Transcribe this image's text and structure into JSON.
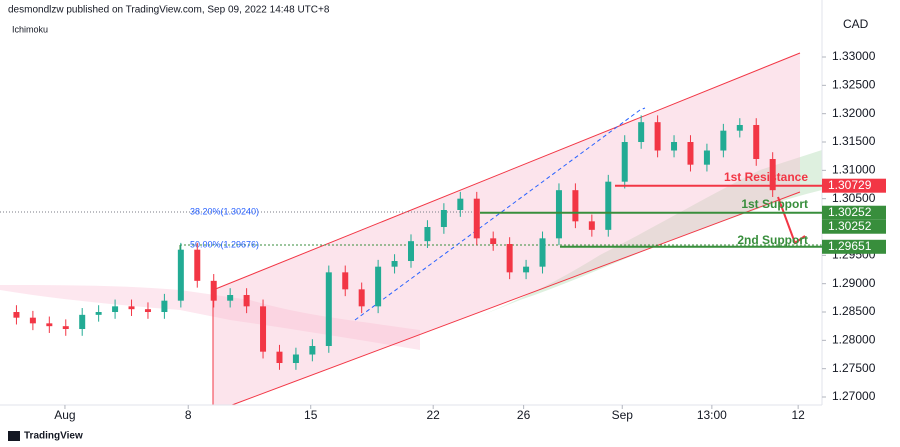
{
  "chart_data": {
    "type": "candlestick",
    "header": "desmondlzw published on TradingView.com, Sep 09, 2022 14:48 UTC+8",
    "indicator": "Ichimoku",
    "currency": "CAD",
    "footer": "TradingView",
    "x": [
      2,
      4,
      6,
      8,
      10,
      12,
      14,
      16,
      18,
      20,
      22,
      24,
      26,
      28,
      30,
      32,
      34,
      36,
      38,
      40,
      42,
      44,
      46,
      48,
      50,
      52,
      54,
      56,
      58,
      60,
      62,
      64,
      66,
      68,
      70,
      72,
      74,
      76,
      78,
      80,
      82,
      84,
      86,
      88,
      90,
      92,
      94
    ],
    "open": [
      1.285,
      1.284,
      1.283,
      1.2825,
      1.282,
      1.2845,
      1.285,
      1.286,
      1.2855,
      1.285,
      1.287,
      1.296,
      1.2905,
      1.287,
      1.288,
      1.286,
      1.278,
      1.276,
      1.2775,
      1.279,
      1.292,
      1.289,
      1.286,
      1.293,
      1.294,
      1.2975,
      1.3,
      1.303,
      1.305,
      1.298,
      1.297,
      1.292,
      1.293,
      1.298,
      1.3065,
      1.301,
      1.2995,
      1.308,
      1.315,
      1.3185,
      1.3135,
      1.315,
      1.311,
      1.3135,
      1.317,
      1.318,
      1.312
    ],
    "high": [
      1.2862,
      1.2852,
      1.2842,
      1.2837,
      1.2857,
      1.2862,
      1.2872,
      1.2872,
      1.2867,
      1.2882,
      1.2972,
      1.2972,
      1.2917,
      1.2892,
      1.2892,
      1.2872,
      1.2792,
      1.2787,
      1.2802,
      1.2932,
      1.2932,
      1.2902,
      1.2942,
      1.2952,
      1.2987,
      1.3012,
      1.3042,
      1.3062,
      1.3062,
      1.2992,
      1.2982,
      1.2942,
      1.2992,
      1.3077,
      1.3077,
      1.3022,
      1.3092,
      1.3162,
      1.3197,
      1.3197,
      1.3162,
      1.3162,
      1.3147,
      1.3182,
      1.3192,
      1.3192,
      1.3132
    ],
    "low": [
      1.2828,
      1.2818,
      1.2813,
      1.2808,
      1.2808,
      1.2833,
      1.2838,
      1.2843,
      1.2838,
      1.2838,
      1.2858,
      1.2893,
      1.2858,
      1.2858,
      1.2848,
      1.2768,
      1.2748,
      1.2748,
      1.2763,
      1.2778,
      1.2878,
      1.2848,
      1.2848,
      1.2918,
      1.2928,
      1.2963,
      1.2988,
      1.3018,
      1.2968,
      1.2958,
      1.2908,
      1.2908,
      1.2918,
      1.2968,
      1.2998,
      1.2983,
      1.2983,
      1.3068,
      1.3138,
      1.3123,
      1.3123,
      1.3098,
      1.3098,
      1.3123,
      1.3158,
      1.3108,
      1.3053
    ],
    "close": [
      1.284,
      1.283,
      1.2825,
      1.282,
      1.2845,
      1.285,
      1.286,
      1.2855,
      1.285,
      1.287,
      1.296,
      1.2905,
      1.287,
      1.288,
      1.286,
      1.278,
      1.276,
      1.2775,
      1.279,
      1.292,
      1.289,
      1.286,
      1.293,
      1.294,
      1.2975,
      1.3,
      1.303,
      1.305,
      1.298,
      1.297,
      1.292,
      1.293,
      1.298,
      1.3065,
      1.301,
      1.2995,
      1.308,
      1.315,
      1.3185,
      1.3135,
      1.315,
      1.311,
      1.3135,
      1.317,
      1.318,
      1.312,
      1.3065
    ],
    "up_color": "#22ab94",
    "down_color": "#f23645",
    "xlim": [
      0,
      100
    ],
    "xticks": [
      {
        "value": 7.9,
        "label": "Aug"
      },
      {
        "value": 22.9,
        "label": "8"
      },
      {
        "value": 37.8,
        "label": "15"
      },
      {
        "value": 52.7,
        "label": "22"
      },
      {
        "value": 63.7,
        "label": "26"
      },
      {
        "value": 75.7,
        "label": "Sep"
      },
      {
        "value": 86.6,
        "label": "13:00"
      },
      {
        "value": 97.1,
        "label": "12"
      }
    ],
    "ylim": [
      1.26859,
      1.34006
    ],
    "yticks": [
      {
        "value": 1.27,
        "label": "1.27000"
      },
      {
        "value": 1.275,
        "label": "1.27500"
      },
      {
        "value": 1.28,
        "label": "1.28000"
      },
      {
        "value": 1.285,
        "label": "1.28500"
      },
      {
        "value": 1.29,
        "label": "1.29000"
      },
      {
        "value": 1.295,
        "label": "1.29500"
      },
      {
        "value": 1.3,
        "label": "1.30000"
      },
      {
        "value": 1.305,
        "label": "1.30500"
      },
      {
        "value": 1.31,
        "label": "1.31000"
      },
      {
        "value": 1.315,
        "label": "1.31500"
      },
      {
        "value": 1.32,
        "label": "1.32000"
      },
      {
        "value": 1.325,
        "label": "1.32500"
      },
      {
        "value": 1.33,
        "label": "1.33000"
      }
    ],
    "levels": [
      {
        "name": "1st Resistance",
        "value": 1.30729,
        "color": "#f23645"
      },
      {
        "name": "1st Support",
        "value": 1.30252,
        "color": "#388e3c"
      },
      {
        "name": "2nd Support",
        "value": 1.29651,
        "color": "#388e3c"
      }
    ],
    "price_tags": [
      {
        "value": 1.30729,
        "color": "#f23645"
      },
      {
        "value": 1.30252,
        "color": "#388e3c"
      },
      {
        "value": 1.30252,
        "color": "#388e3c"
      },
      {
        "value": 1.29651,
        "color": "#388e3c"
      }
    ],
    "fib_labels": [
      "38.20%(1.30240)",
      "50.00%(1.29676)"
    ]
  }
}
